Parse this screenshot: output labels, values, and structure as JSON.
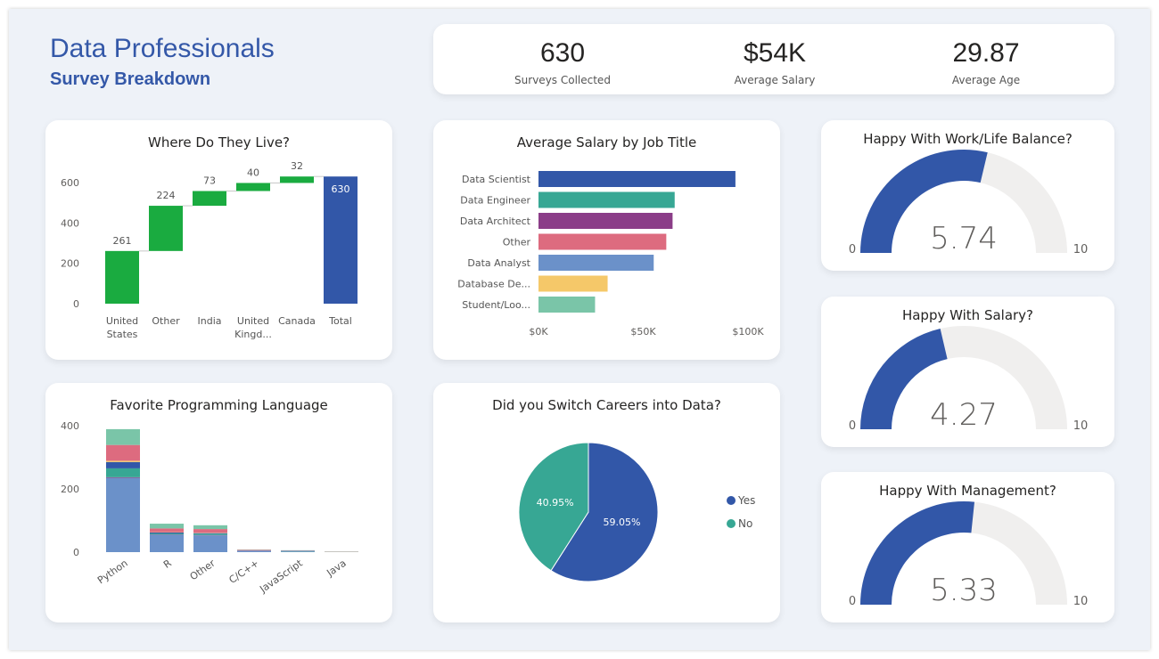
{
  "header": {
    "title": "Data Professionals",
    "subtitle": "Survey Breakdown"
  },
  "kpis": [
    {
      "value": "630",
      "label": "Surveys Collected"
    },
    {
      "value": "$54K",
      "label": "Average Salary"
    },
    {
      "value": "29.87",
      "label": "Average Age"
    }
  ],
  "chart_data": [
    {
      "type": "waterfall",
      "title": "Where Do They Live?",
      "categories": [
        "United States",
        "Other",
        "India",
        "United Kingd...",
        "Canada",
        "Total"
      ],
      "values": [
        261,
        224,
        73,
        40,
        32,
        630
      ],
      "ylim": [
        0,
        630
      ],
      "yticks": [
        0,
        200,
        400,
        600
      ],
      "colors": {
        "increase": "#1aab40",
        "total": "#3257a8"
      }
    },
    {
      "type": "bar",
      "orientation": "horizontal",
      "title": "Average Salary by Job Title",
      "categories": [
        "Data Scientist",
        "Data Engineer",
        "Data Architect",
        "Other",
        "Data Analyst",
        "Database De...",
        "Student/Loo..."
      ],
      "values": [
        94000,
        65000,
        64000,
        61000,
        55000,
        33000,
        27000
      ],
      "xticks": [
        "$0K",
        "$50K",
        "$100K"
      ],
      "xlim": [
        0,
        100000
      ],
      "colors": [
        "#3257a8",
        "#37a794",
        "#8b3d88",
        "#dd6b7f",
        "#6b91c9",
        "#f5c869",
        "#7ac5a8"
      ]
    },
    {
      "type": "bar",
      "stacked": true,
      "title": "Favorite Programming Language",
      "categories": [
        "Python",
        "R",
        "Other",
        "C/C++",
        "JavaScript",
        "Java"
      ],
      "yticks": [
        0,
        200,
        400
      ],
      "ylim": [
        0,
        400
      ],
      "series": [
        {
          "color": "#6b91c9",
          "values": [
            235,
            55,
            53,
            4,
            2,
            0
          ]
        },
        {
          "color": "#8b3d88",
          "values": [
            2,
            1,
            1,
            0,
            0,
            0
          ]
        },
        {
          "color": "#37a794",
          "values": [
            28,
            3,
            4,
            0,
            1,
            0
          ]
        },
        {
          "color": "#3257a8",
          "values": [
            20,
            3,
            2,
            1,
            1,
            0
          ]
        },
        {
          "color": "#f5c869",
          "values": [
            4,
            1,
            1,
            0,
            0,
            0
          ]
        },
        {
          "color": "#dd6b7f",
          "values": [
            50,
            12,
            12,
            2,
            1,
            1
          ]
        },
        {
          "color": "#7ac5a8",
          "values": [
            50,
            15,
            12,
            1,
            1,
            1
          ]
        }
      ]
    },
    {
      "type": "pie",
      "title": "Did you Switch Careers into Data?",
      "slices": [
        {
          "name": "Yes",
          "value": 59.05,
          "label": "59.05%",
          "color": "#3257a8"
        },
        {
          "name": "No",
          "value": 40.95,
          "label": "40.95%",
          "color": "#37a794"
        }
      ],
      "legend": "right"
    }
  ],
  "gauges": [
    {
      "title": "Happy With Work/Life Balance?",
      "value": 5.74,
      "display": "5.74",
      "min": "0",
      "max": "10"
    },
    {
      "title": "Happy With Salary?",
      "value": 4.27,
      "display": "4.27",
      "min": "0",
      "max": "10"
    },
    {
      "title": "Happy With Management?",
      "value": 5.33,
      "display": "5.33",
      "min": "0",
      "max": "10"
    }
  ],
  "colors": {
    "accent": "#3257a8",
    "gauge_track": "#f0efee"
  }
}
